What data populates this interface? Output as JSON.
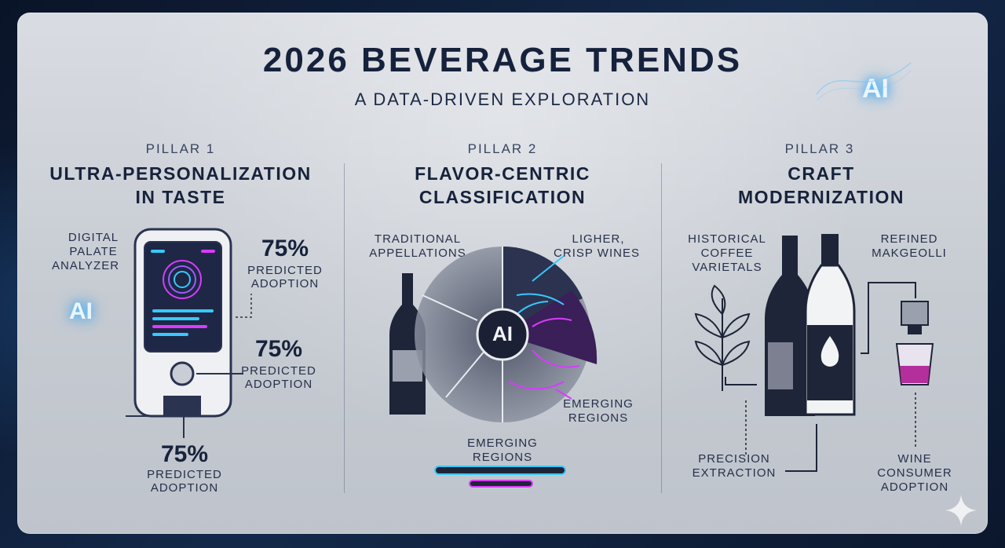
{
  "title": "2026 BEVERAGE TRENDS",
  "subtitle": "A DATA-DRIVEN EXPLORATION",
  "ai_badge": "AI",
  "pillar1": {
    "label": "PILLAR 1",
    "heading_line1": "ULTRA-PERSONALIZATION",
    "heading_line2": "IN TASTE",
    "analyzer": [
      "DIGITAL",
      "PALATE",
      "ANALYZER"
    ],
    "ai_badge": "AI",
    "stat1": {
      "value": "75%",
      "line1": "PREDICTED",
      "line2": "ADOPTION"
    },
    "stat2": {
      "value": "75%",
      "line1": "PREDICTED",
      "line2": "ADOPTION"
    },
    "stat3": {
      "value": "75%",
      "line1": "PREDICTED",
      "line2": "ADOPTION"
    }
  },
  "pillar2": {
    "label": "PILLAR 2",
    "heading_line1": "FLAVOR-CENTRIC",
    "heading_line2": "CLASSIFICATION",
    "traditional": [
      "TRADITIONAL",
      "APPELLATIONS"
    ],
    "ligher": [
      "LIGHER,",
      "CRISP WINES"
    ],
    "emerging_right": [
      "EMERGING",
      "REGIONS"
    ],
    "emerging_bottom": [
      "EMERGING",
      "REGIONS"
    ],
    "ai_center": "AI"
  },
  "pillar3": {
    "label": "PILLAR 3",
    "heading_line1": "CRAFT",
    "heading_line2": "MODERNIZATION",
    "coffee": [
      "HISTORICAL",
      "COFFEE",
      "VARIETALS"
    ],
    "makgeolli": [
      "REFINED",
      "MAKGEOLLI"
    ],
    "extraction": [
      "PRECISION",
      "EXTRACTION"
    ],
    "consumer": [
      "WINE",
      "CONSUMER",
      "ADOPTION"
    ]
  },
  "colors": {
    "navy": "#17223b",
    "cyan": "#38c8ff",
    "magenta": "#d83cff",
    "card": "#cfd3d9"
  }
}
